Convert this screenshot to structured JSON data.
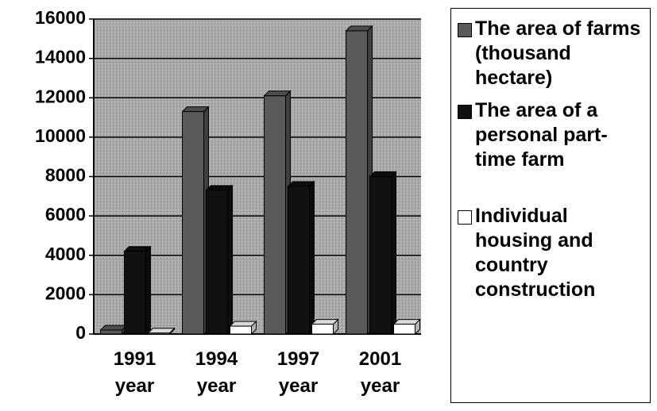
{
  "chart_data": {
    "type": "bar",
    "categories": [
      "1991 year",
      "1994 year",
      "1997 year",
      "2001 year"
    ],
    "series": [
      {
        "name": "The area of farms (thousand hectare)",
        "color": "#5a5a5a",
        "values": [
          200,
          11300,
          12100,
          15400
        ]
      },
      {
        "name": "The area of a personal part-time farm",
        "color": "#111111",
        "values": [
          4200,
          7300,
          7500,
          8000
        ]
      },
      {
        "name": "Individual housing and country construction",
        "color": "#ffffff",
        "values": [
          50,
          400,
          500,
          500
        ]
      }
    ],
    "ylim": [
      0,
      16000
    ],
    "yticks": [
      0,
      2000,
      4000,
      6000,
      8000,
      10000,
      12000,
      14000,
      16000
    ],
    "grid": true,
    "legend": "right"
  }
}
